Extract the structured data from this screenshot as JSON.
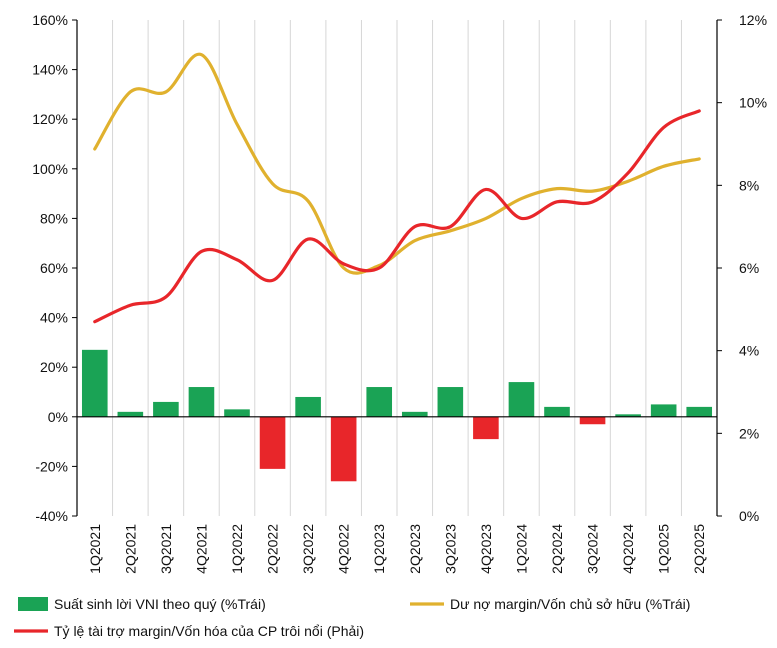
{
  "chart_data": {
    "type": "bar+line",
    "title": "",
    "categories": [
      "1Q2021",
      "2Q2021",
      "3Q2021",
      "4Q2021",
      "1Q2022",
      "2Q2022",
      "3Q2022",
      "4Q2022",
      "1Q2023",
      "2Q2023",
      "3Q2023",
      "4Q2023",
      "1Q2024",
      "2Q2024",
      "3Q2024",
      "4Q2024",
      "1Q2025",
      "2Q2025"
    ],
    "left_axis": {
      "ylim": [
        -40,
        160
      ],
      "ticks": [
        "160%",
        "140%",
        "120%",
        "100%",
        "80%",
        "60%",
        "40%",
        "20%",
        "0%",
        "-20%",
        "-40%"
      ]
    },
    "right_axis": {
      "ylim": [
        0,
        12
      ],
      "ticks": [
        "12%",
        "10%",
        "8%",
        "6%",
        "4%",
        "2%",
        "0%"
      ]
    },
    "grid": "vertical",
    "legend_position": "bottom",
    "series": [
      {
        "name": "Suất sinh lời VNI theo quý (%Trái)",
        "kind": "bar",
        "axis": "left",
        "color_positive": "#1aa355",
        "color_negative": "#e8262a",
        "values": [
          27,
          2,
          6,
          12,
          3,
          -21,
          8,
          -26,
          12,
          2,
          12,
          -9,
          14,
          4,
          -3,
          1,
          5,
          4
        ]
      },
      {
        "name": "Dư nợ margin/Vốn chủ sở hữu (%Trái)",
        "kind": "line",
        "axis": "left",
        "color": "#e0b12e",
        "values": [
          108,
          131,
          131,
          146,
          118,
          94,
          87,
          60,
          61,
          71,
          75,
          80,
          88,
          92,
          91,
          95,
          101,
          104
        ]
      },
      {
        "name": "Tỷ lệ tài trợ margin/Vốn hóa của CP trôi nổi (Phải)",
        "kind": "line",
        "axis": "right",
        "color": "#e8262a",
        "values": [
          4.7,
          5.1,
          5.3,
          6.4,
          6.2,
          5.7,
          6.7,
          6.1,
          6.0,
          7.0,
          7.0,
          7.9,
          7.2,
          7.6,
          7.6,
          8.3,
          9.4,
          9.8
        ]
      }
    ]
  }
}
